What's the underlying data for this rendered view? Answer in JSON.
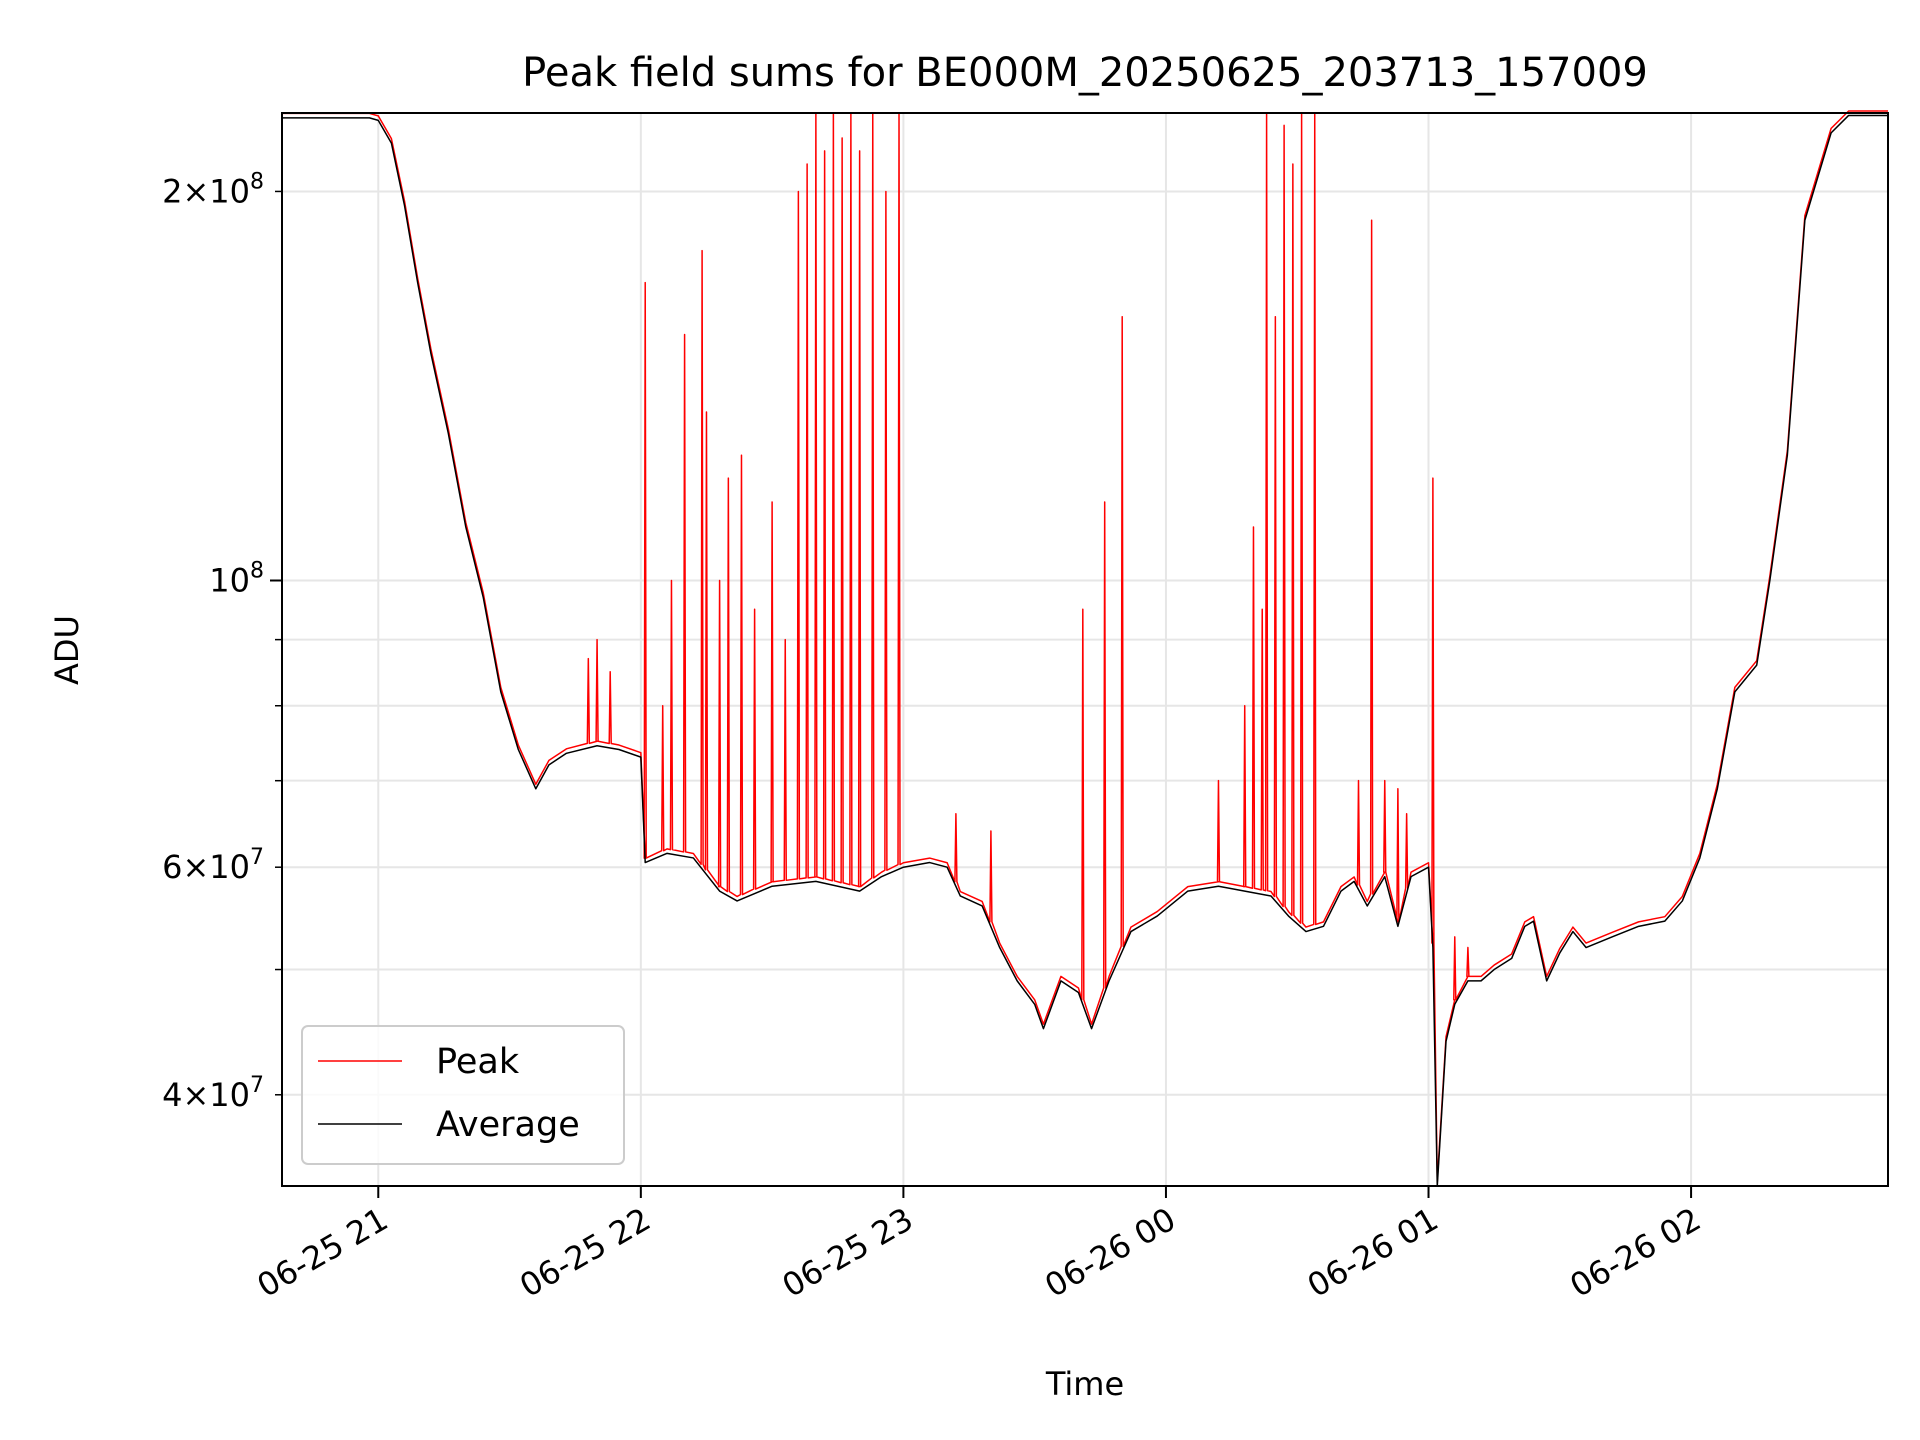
{
  "chart_data": {
    "type": "line",
    "title": "Peak field sums for BE000M_20250625_203713_157009",
    "xlabel": "Time",
    "ylabel": "ADU",
    "yscale": "log",
    "xlim": [
      "2025-06-25 20:38",
      "2025-06-26 02:45"
    ],
    "ylim": [
      34000000,
      230000000
    ],
    "grid": true,
    "legend": {
      "position": "lower-left",
      "entries": [
        "Peak",
        "Average"
      ]
    },
    "x_ticks": [
      {
        "value": "2025-06-25 21:00",
        "label": "06-25 21"
      },
      {
        "value": "2025-06-25 22:00",
        "label": "06-25 22"
      },
      {
        "value": "2025-06-25 23:00",
        "label": "06-25 23"
      },
      {
        "value": "2025-06-26 00:00",
        "label": "06-26 00"
      },
      {
        "value": "2025-06-26 01:00",
        "label": "06-26 01"
      },
      {
        "value": "2025-06-26 02:00",
        "label": "06-26 02"
      }
    ],
    "y_ticks_major": [
      {
        "value": 100000000,
        "mantissa": "",
        "exponent": "8"
      }
    ],
    "y_ticks_minor": [
      {
        "value": 40000000,
        "mantissa": "4",
        "exponent": "7"
      },
      {
        "value": 50000000,
        "mantissa": "",
        "exponent": ""
      },
      {
        "value": 60000000,
        "mantissa": "6",
        "exponent": "7"
      },
      {
        "value": 70000000,
        "mantissa": "",
        "exponent": ""
      },
      {
        "value": 80000000,
        "mantissa": "",
        "exponent": ""
      },
      {
        "value": 90000000,
        "mantissa": "",
        "exponent": ""
      },
      {
        "value": 200000000,
        "mantissa": "2",
        "exponent": "8"
      }
    ],
    "series": [
      {
        "name": "Average",
        "color": "#000000",
        "points": [
          [
            "2025-06-25 20:38",
            228000000
          ],
          [
            "2025-06-25 20:58",
            228000000
          ],
          [
            "2025-06-25 21:00",
            227000000
          ],
          [
            "2025-06-25 21:03",
            218000000
          ],
          [
            "2025-06-25 21:06",
            195000000
          ],
          [
            "2025-06-25 21:09",
            170000000
          ],
          [
            "2025-06-25 21:12",
            150000000
          ],
          [
            "2025-06-25 21:16",
            130000000
          ],
          [
            "2025-06-25 21:20",
            110000000
          ],
          [
            "2025-06-25 21:24",
            97000000
          ],
          [
            "2025-06-25 21:28",
            82000000
          ],
          [
            "2025-06-25 21:32",
            74000000
          ],
          [
            "2025-06-25 21:36",
            69000000
          ],
          [
            "2025-06-25 21:39",
            72000000
          ],
          [
            "2025-06-25 21:43",
            73500000
          ],
          [
            "2025-06-25 21:50",
            74500000
          ],
          [
            "2025-06-25 21:55",
            74000000
          ],
          [
            "2025-06-25 22:00",
            73000000
          ],
          [
            "2025-06-25 22:01",
            60500000
          ],
          [
            "2025-06-25 22:06",
            61500000
          ],
          [
            "2025-06-25 22:12",
            61000000
          ],
          [
            "2025-06-25 22:18",
            57500000
          ],
          [
            "2025-06-25 22:22",
            56500000
          ],
          [
            "2025-06-25 22:30",
            58000000
          ],
          [
            "2025-06-25 22:40",
            58500000
          ],
          [
            "2025-06-25 22:50",
            57500000
          ],
          [
            "2025-06-25 22:55",
            59000000
          ],
          [
            "2025-06-25 23:00",
            60000000
          ],
          [
            "2025-06-25 23:06",
            60500000
          ],
          [
            "2025-06-25 23:10",
            60000000
          ],
          [
            "2025-06-25 23:13",
            57000000
          ],
          [
            "2025-06-25 23:18",
            56000000
          ],
          [
            "2025-06-25 23:22",
            52000000
          ],
          [
            "2025-06-25 23:26",
            49000000
          ],
          [
            "2025-06-25 23:30",
            47000000
          ],
          [
            "2025-06-25 23:32",
            45000000
          ],
          [
            "2025-06-25 23:36",
            49000000
          ],
          [
            "2025-06-25 23:40",
            48000000
          ],
          [
            "2025-06-25 23:43",
            45000000
          ],
          [
            "2025-06-25 23:47",
            49000000
          ],
          [
            "2025-06-25 23:52",
            53500000
          ],
          [
            "2025-06-25 23:58",
            55000000
          ],
          [
            "2025-06-26 00:05",
            57500000
          ],
          [
            "2025-06-26 00:12",
            58000000
          ],
          [
            "2025-06-26 00:18",
            57500000
          ],
          [
            "2025-06-26 00:24",
            57000000
          ],
          [
            "2025-06-26 00:28",
            55000000
          ],
          [
            "2025-06-26 00:32",
            53500000
          ],
          [
            "2025-06-26 00:36",
            54000000
          ],
          [
            "2025-06-26 00:40",
            57500000
          ],
          [
            "2025-06-26 00:43",
            58500000
          ],
          [
            "2025-06-26 00:46",
            56000000
          ],
          [
            "2025-06-26 00:50",
            59000000
          ],
          [
            "2025-06-26 00:53",
            54000000
          ],
          [
            "2025-06-26 00:56",
            59000000
          ],
          [
            "2025-06-26 01:00",
            60000000
          ],
          [
            "2025-06-26 01:01",
            52000000
          ],
          [
            "2025-06-26 01:02",
            34000000
          ],
          [
            "2025-06-26 01:04",
            44000000
          ],
          [
            "2025-06-26 01:06",
            47000000
          ],
          [
            "2025-06-26 01:09",
            49000000
          ],
          [
            "2025-06-26 01:12",
            49000000
          ],
          [
            "2025-06-26 01:15",
            50000000
          ],
          [
            "2025-06-26 01:19",
            51000000
          ],
          [
            "2025-06-26 01:22",
            54000000
          ],
          [
            "2025-06-26 01:24",
            54500000
          ],
          [
            "2025-06-26 01:27",
            49000000
          ],
          [
            "2025-06-26 01:30",
            51500000
          ],
          [
            "2025-06-26 01:33",
            53500000
          ],
          [
            "2025-06-26 01:36",
            52000000
          ],
          [
            "2025-06-26 01:42",
            53000000
          ],
          [
            "2025-06-26 01:48",
            54000000
          ],
          [
            "2025-06-26 01:54",
            54500000
          ],
          [
            "2025-06-26 01:58",
            56500000
          ],
          [
            "2025-06-26 02:02",
            61000000
          ],
          [
            "2025-06-26 02:06",
            69000000
          ],
          [
            "2025-06-26 02:10",
            82000000
          ],
          [
            "2025-06-26 02:15",
            86000000
          ],
          [
            "2025-06-26 02:18",
            100000000
          ],
          [
            "2025-06-26 02:22",
            125000000
          ],
          [
            "2025-06-26 02:26",
            190000000
          ],
          [
            "2025-06-26 02:32",
            222000000
          ],
          [
            "2025-06-26 02:36",
            229000000
          ],
          [
            "2025-06-26 02:45",
            229000000
          ]
        ]
      },
      {
        "name": "Peak",
        "color": "#ff0000",
        "spikes": [
          [
            "2025-06-25 21:48",
            87000000
          ],
          [
            "2025-06-25 21:50",
            90000000
          ],
          [
            "2025-06-25 21:53",
            85000000
          ],
          [
            "2025-06-25 22:01",
            170000000
          ],
          [
            "2025-06-25 22:05",
            80000000
          ],
          [
            "2025-06-25 22:07",
            100000000
          ],
          [
            "2025-06-25 22:10",
            155000000
          ],
          [
            "2025-06-25 22:14",
            180000000
          ],
          [
            "2025-06-25 22:15",
            135000000
          ],
          [
            "2025-06-25 22:18",
            100000000
          ],
          [
            "2025-06-25 22:20",
            120000000
          ],
          [
            "2025-06-25 22:23",
            125000000
          ],
          [
            "2025-06-25 22:26",
            95000000
          ],
          [
            "2025-06-25 22:30",
            115000000
          ],
          [
            "2025-06-25 22:33",
            90000000
          ],
          [
            "2025-06-25 22:36",
            200000000
          ],
          [
            "2025-06-25 22:38",
            210000000
          ],
          [
            "2025-06-25 22:40",
            230000000
          ],
          [
            "2025-06-25 22:42",
            215000000
          ],
          [
            "2025-06-25 22:44",
            230000000
          ],
          [
            "2025-06-25 22:46",
            220000000
          ],
          [
            "2025-06-25 22:48",
            230000000
          ],
          [
            "2025-06-25 22:50",
            215000000
          ],
          [
            "2025-06-25 22:53",
            230000000
          ],
          [
            "2025-06-25 22:56",
            200000000
          ],
          [
            "2025-06-25 22:59",
            230000000
          ],
          [
            "2025-06-25 23:12",
            66000000
          ],
          [
            "2025-06-25 23:20",
            64000000
          ],
          [
            "2025-06-25 23:41",
            95000000
          ],
          [
            "2025-06-25 23:46",
            115000000
          ],
          [
            "2025-06-25 23:50",
            160000000
          ],
          [
            "2025-06-26 00:12",
            70000000
          ],
          [
            "2025-06-26 00:18",
            80000000
          ],
          [
            "2025-06-26 00:20",
            110000000
          ],
          [
            "2025-06-26 00:22",
            95000000
          ],
          [
            "2025-06-26 00:23",
            230000000
          ],
          [
            "2025-06-26 00:25",
            160000000
          ],
          [
            "2025-06-26 00:27",
            225000000
          ],
          [
            "2025-06-26 00:29",
            210000000
          ],
          [
            "2025-06-26 00:31",
            230000000
          ],
          [
            "2025-06-26 00:34",
            230000000
          ],
          [
            "2025-06-26 00:44",
            70000000
          ],
          [
            "2025-06-26 00:47",
            190000000
          ],
          [
            "2025-06-26 00:50",
            70000000
          ],
          [
            "2025-06-26 00:53",
            69000000
          ],
          [
            "2025-06-26 00:55",
            66000000
          ],
          [
            "2025-06-26 01:01",
            120000000
          ],
          [
            "2025-06-26 01:06",
            53000000
          ],
          [
            "2025-06-26 01:09",
            52000000
          ]
        ]
      }
    ]
  }
}
